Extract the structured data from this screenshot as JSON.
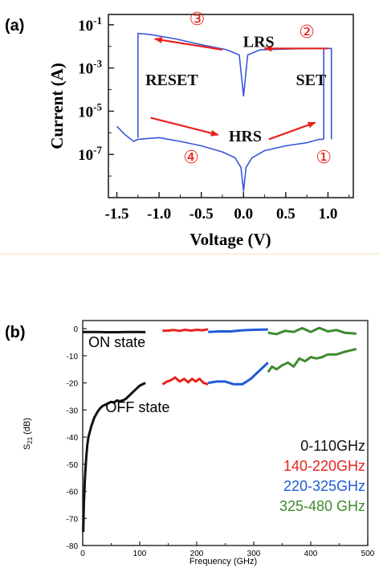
{
  "chart_data": [
    {
      "panel_label": "(a)",
      "type": "line",
      "xlabel": "Voltage (V)",
      "ylabel": "Current (A)",
      "xlim": [
        -1.6,
        1.3
      ],
      "ylim": [
        1e-09,
        0.3
      ],
      "yscale": "log",
      "x_ticks": [
        "-1.5",
        "-1.0",
        "-0.5",
        "0.0",
        "0.5",
        "1.0"
      ],
      "x_tick_values": [
        -1.5,
        -1.0,
        -0.5,
        0.0,
        0.5,
        1.0
      ],
      "y_ticks": [
        {
          "base": "10",
          "exp": "-1",
          "value": 0.1
        },
        {
          "base": "10",
          "exp": "-3",
          "value": 0.001
        },
        {
          "base": "10",
          "exp": "-5",
          "value": 1e-05
        },
        {
          "base": "10",
          "exp": "-7",
          "value": 1e-07
        }
      ],
      "line_color": "#3a55d8",
      "arrow_color": "#e8231f",
      "grid": false,
      "series": [
        {
          "x": [
            -1.5,
            -1.4,
            -1.3,
            -1.25,
            -1.0,
            -0.75,
            -0.5,
            -0.25,
            -0.1,
            -0.03,
            0.0,
            0.03,
            0.1,
            0.25,
            0.5,
            0.75,
            0.9,
            0.95
          ],
          "y": [
            2e-06,
            8e-07,
            4e-07,
            5e-07,
            6e-07,
            4e-07,
            2.5e-07,
            1.3e-07,
            7e-08,
            2.5e-08,
            2e-09,
            2.5e-08,
            7e-08,
            1.5e-07,
            2.5e-07,
            3.5e-07,
            5e-07,
            5e-07
          ]
        },
        {
          "x": [
            0.95,
            0.95,
            1.04,
            1.04
          ],
          "y": [
            5e-07,
            0.008,
            0.008,
            5e-07
          ]
        },
        {
          "x": [
            1.04,
            0.8,
            0.5,
            0.2,
            0.05,
            0.0,
            -0.05,
            -0.2,
            -0.5,
            -0.8,
            -1.1,
            -1.25,
            -1.25
          ],
          "y": [
            0.008,
            0.008,
            0.0075,
            0.007,
            0.004,
            5e-05,
            0.004,
            0.007,
            0.012,
            0.022,
            0.035,
            0.04,
            6e-07
          ]
        }
      ],
      "annotations": [
        {
          "text": "LRS",
          "x": 0.18,
          "y": 0.0095
        },
        {
          "text": "RESET",
          "x": -0.85,
          "y": 0.00016
        },
        {
          "text": "SET",
          "x": 0.8,
          "y": 0.00016
        },
        {
          "text": "HRS",
          "x": 0.02,
          "y": 4e-07
        },
        {
          "text": "①",
          "x": 0.95,
          "y": 4e-08
        },
        {
          "text": "②",
          "x": 0.75,
          "y": 0.025
        },
        {
          "text": "③",
          "x": -0.55,
          "y": 0.1
        },
        {
          "text": "④",
          "x": -0.62,
          "y": 4e-08
        }
      ],
      "arrows": [
        {
          "from": [
            -0.25,
            0.007
          ],
          "to": [
            -1.05,
            0.022
          ]
        },
        {
          "from": [
            1.0,
            0.008
          ],
          "to": [
            0.25,
            0.008
          ]
        },
        {
          "from": [
            -1.1,
            5e-06
          ],
          "to": [
            -0.3,
            8e-07
          ]
        },
        {
          "from": [
            0.3,
            5e-07
          ],
          "to": [
            0.85,
            3e-06
          ]
        }
      ]
    },
    {
      "panel_label": "(b)",
      "type": "line",
      "xlabel": "Frequency (GHz)",
      "ylabel": "S21 (dB)",
      "ylabel_main": "S",
      "ylabel_sub": "21",
      "ylabel_unit": " (dB)",
      "xlim": [
        0,
        500
      ],
      "ylim": [
        -80,
        3
      ],
      "x_ticks": [
        "0",
        "100",
        "200",
        "300",
        "400",
        "500"
      ],
      "x_tick_values": [
        0,
        100,
        200,
        300,
        400,
        500
      ],
      "y_ticks": [
        "0",
        "-10",
        "-20",
        "-30",
        "-40",
        "-50",
        "-60",
        "-70",
        "-80"
      ],
      "y_tick_values": [
        0,
        -10,
        -20,
        -30,
        -40,
        -50,
        -60,
        -70,
        -80
      ],
      "grid": false,
      "annotations": [
        {
          "text": "ON state",
          "x": 10,
          "y": -5
        },
        {
          "text": "OFF state",
          "x": 40,
          "y": -29
        }
      ],
      "legend_placement": "bottom-right",
      "series": [
        {
          "name": "0-110GHz",
          "color": "#111111",
          "x": [
            0,
            20,
            40,
            60,
            80,
            100,
            110
          ],
          "y": [
            -1.2,
            -1.2,
            -1.3,
            -1.3,
            -1.2,
            -1.2,
            -1.3
          ]
        },
        {
          "name": "0-110GHz",
          "color": "#111111",
          "x": [
            1,
            2,
            4,
            6,
            8,
            10,
            15,
            20,
            25,
            30,
            35,
            40,
            45,
            50,
            55,
            60,
            65,
            70,
            75,
            80,
            90,
            100,
            110
          ],
          "y": [
            -75,
            -65,
            -55,
            -48,
            -43,
            -40,
            -36,
            -33,
            -31,
            -29.5,
            -28.5,
            -28,
            -27.5,
            -27,
            -27.2,
            -26.5,
            -26.8,
            -26.5,
            -26,
            -25,
            -23,
            -21,
            -20
          ]
        },
        {
          "name": "140-220GHz",
          "color": "#e8231f",
          "x": [
            140,
            150,
            160,
            170,
            180,
            190,
            200,
            210,
            220
          ],
          "y": [
            -0.8,
            -0.7,
            -0.5,
            -0.8,
            -0.4,
            -0.7,
            -0.4,
            -0.6,
            -0.2
          ]
        },
        {
          "name": "140-220GHz",
          "color": "#e8231f",
          "x": [
            140,
            148,
            155,
            162,
            170,
            178,
            185,
            192,
            198,
            205,
            212,
            220
          ],
          "y": [
            -20.5,
            -19.5,
            -19,
            -18,
            -19.5,
            -18.5,
            -19.8,
            -18.5,
            -19.5,
            -18.5,
            -20,
            -20.5
          ]
        },
        {
          "name": "220-325GHz",
          "color": "#1e5cd6",
          "x": [
            220,
            240,
            260,
            280,
            300,
            325
          ],
          "y": [
            -1.2,
            -1.0,
            -1.0,
            -0.6,
            -0.4,
            -0.3
          ]
        },
        {
          "name": "220-325GHz",
          "color": "#1e5cd6",
          "x": [
            220,
            235,
            250,
            265,
            280,
            295,
            310,
            325
          ],
          "y": [
            -20,
            -19.5,
            -19.5,
            -20.5,
            -20.5,
            -18.5,
            -15.5,
            -12.5
          ]
        },
        {
          "name": "325-480 GHz",
          "color": "#3f8a2e",
          "x": [
            325,
            340,
            355,
            370,
            385,
            400,
            415,
            430,
            445,
            460,
            480
          ],
          "y": [
            -1.5,
            -2.0,
            -0.8,
            -1.2,
            0.2,
            -1.2,
            0.3,
            -1.0,
            -0.5,
            -1.5,
            -1.8
          ]
        },
        {
          "name": "325-480 GHz",
          "color": "#3f8a2e",
          "x": [
            325,
            332,
            340,
            350,
            360,
            370,
            380,
            390,
            400,
            410,
            420,
            430,
            445,
            460,
            480
          ],
          "y": [
            -16,
            -14,
            -15,
            -13.5,
            -12.5,
            -14,
            -11,
            -12,
            -10.5,
            -11,
            -10.5,
            -9.5,
            -9.5,
            -8.5,
            -7.5
          ]
        }
      ],
      "legend": [
        {
          "label": "0-110GHz",
          "color": "#111111"
        },
        {
          "label": "140-220GHz",
          "color": "#e8231f"
        },
        {
          "label": "220-325GHz",
          "color": "#1e5cd6"
        },
        {
          "label": "325-480 GHz",
          "color": "#3f8a2e"
        }
      ]
    }
  ]
}
